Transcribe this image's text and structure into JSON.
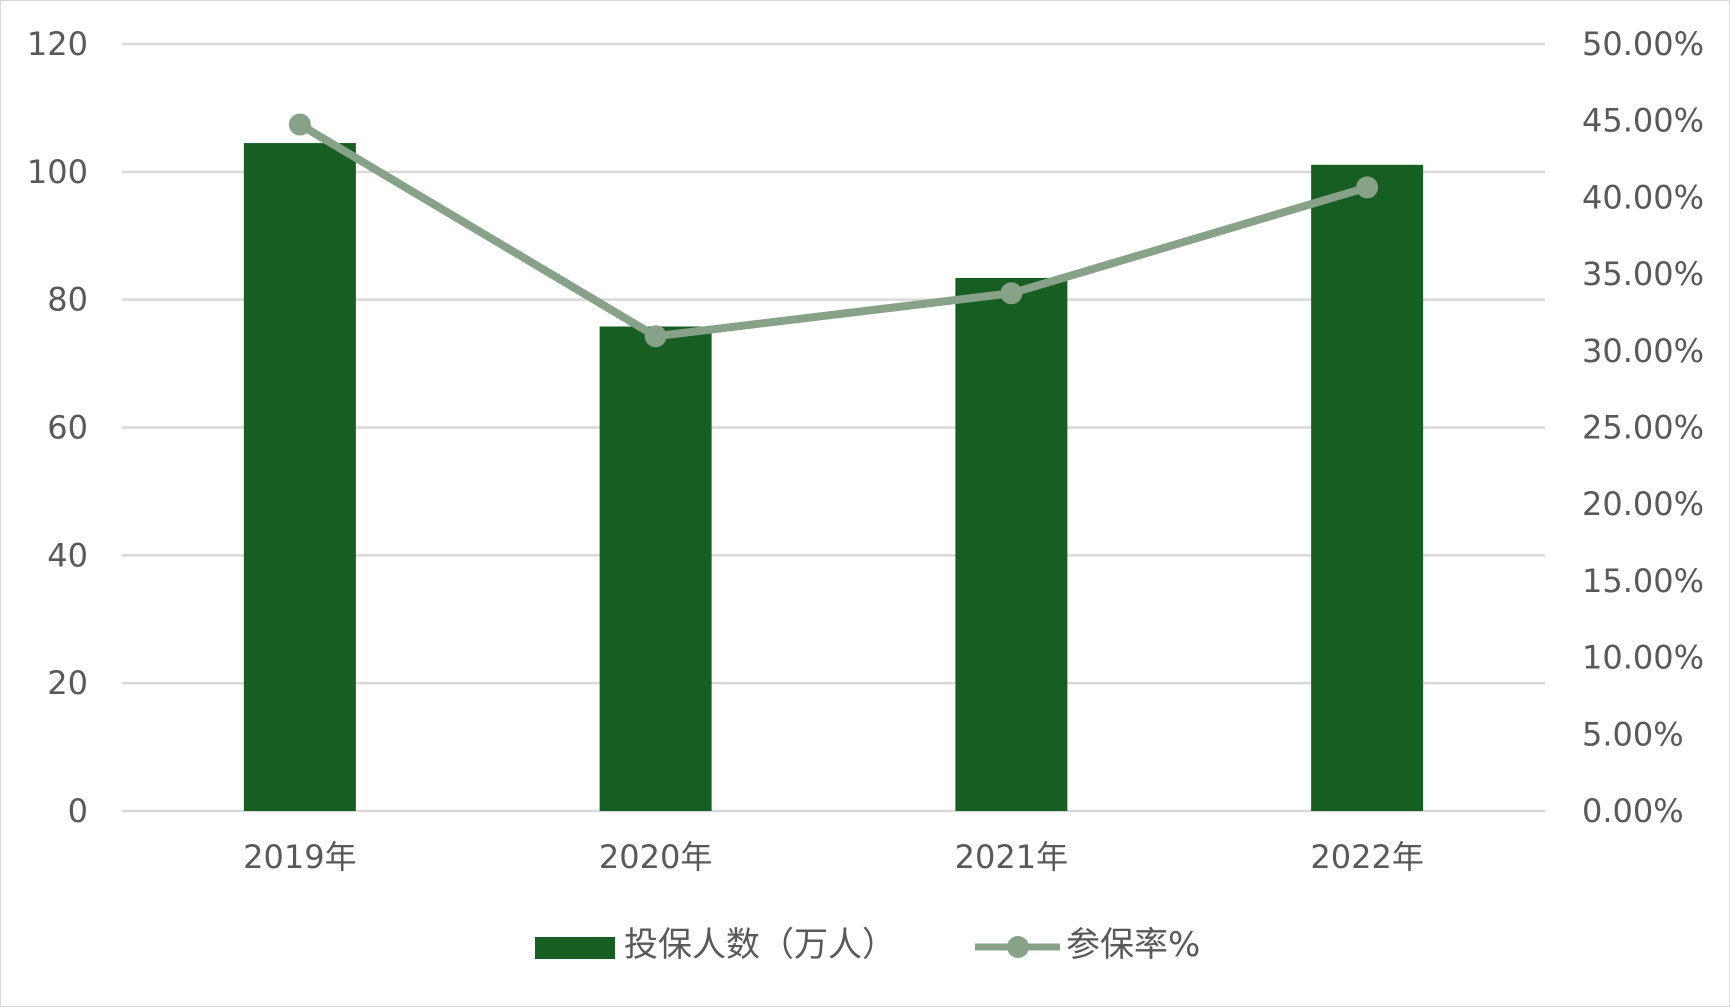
{
  "chart_data": {
    "type": "bar",
    "categories": [
      "2019年",
      "2020年",
      "2021年",
      "2022年"
    ],
    "series": [
      {
        "name": "投保人数（万人）",
        "type": "bar",
        "axis": "left",
        "color": "#175e23",
        "values": [
          104.5,
          75.8,
          83.4,
          101.1
        ]
      },
      {
        "name": "参保率%",
        "type": "line",
        "axis": "right",
        "color": "#87a288",
        "values": [
          0.4475,
          0.3095,
          0.3375,
          0.4065
        ]
      }
    ],
    "y_left": {
      "min": 0,
      "max": 120,
      "ticks": [
        "0",
        "20",
        "40",
        "60",
        "80",
        "100",
        "120"
      ]
    },
    "y_right": {
      "min": 0,
      "max": 0.5,
      "ticks": [
        "0.00%",
        "5.00%",
        "10.00%",
        "15.00%",
        "20.00%",
        "25.00%",
        "30.00%",
        "35.00%",
        "40.00%",
        "45.00%",
        "50.00%"
      ]
    },
    "grid": true,
    "legend": "bottom",
    "colors": {
      "bar": "#175e23",
      "line": "#87a288",
      "grid": "#d9d9d9",
      "text": "#595959"
    }
  }
}
